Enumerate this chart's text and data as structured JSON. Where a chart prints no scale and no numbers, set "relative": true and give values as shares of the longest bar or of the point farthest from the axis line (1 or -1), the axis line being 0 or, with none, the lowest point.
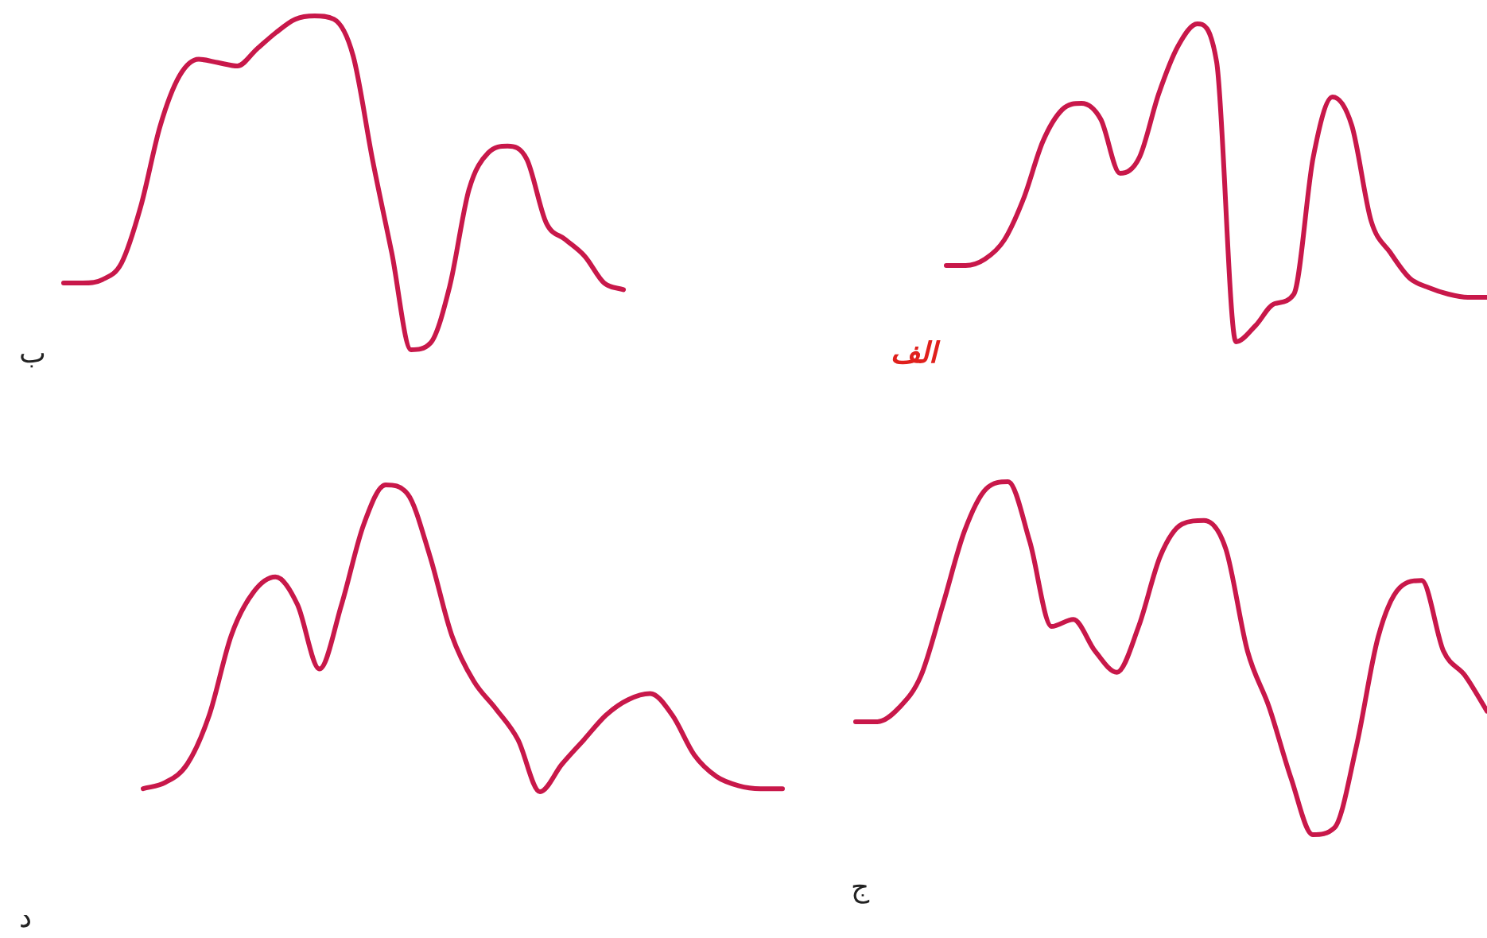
{
  "chart_data": [
    {
      "type": "line",
      "title": "الف",
      "relative": true,
      "legend": false,
      "grid": false,
      "marker": "none",
      "categories": [
        null,
        null,
        null,
        null,
        null,
        null,
        null,
        null,
        null,
        null,
        null,
        null,
        null,
        null,
        null,
        null,
        null,
        null,
        null,
        null,
        null,
        null,
        null,
        null,
        null,
        null,
        null,
        null,
        null
      ],
      "series": [
        {
          "color": "#c8184a",
          "values": [
            0.24,
            0.24,
            0.26,
            0.32,
            0.45,
            0.63,
            0.73,
            0.75,
            0.7,
            0.53,
            0.58,
            0.78,
            0.93,
            1,
            0.88,
            0,
            0.05,
            0.12,
            0.15,
            0.58,
            0.77,
            0.68,
            0.38,
            0.28,
            0.2,
            0.17,
            0.15,
            0.14,
            0.14
          ]
        }
      ]
    },
    {
      "type": "line",
      "title": "ب",
      "relative": true,
      "legend": false,
      "grid": false,
      "marker": "none",
      "categories": [
        null,
        null,
        null,
        null,
        null,
        null,
        null,
        null,
        null,
        null,
        null,
        null,
        null,
        null,
        null,
        null,
        null,
        null,
        null,
        null,
        null,
        null,
        null,
        null,
        null,
        null,
        null,
        null,
        null,
        null
      ],
      "series": [
        {
          "color": "#c8184a",
          "values": [
            0.2,
            0.2,
            0.21,
            0.26,
            0.43,
            0.67,
            0.82,
            0.87,
            0.86,
            0.85,
            0.9,
            0.95,
            0.99,
            1,
            0.99,
            0.88,
            0.57,
            0.29,
            0,
            0.02,
            0.19,
            0.48,
            0.59,
            0.61,
            0.57,
            0.38,
            0.33,
            0.28,
            0.2,
            0.18
          ]
        }
      ]
    },
    {
      "type": "line",
      "title": "ج",
      "relative": true,
      "legend": false,
      "grid": false,
      "marker": "none",
      "categories": [
        null,
        null,
        null,
        null,
        null,
        null,
        null,
        null,
        null,
        null,
        null,
        null,
        null,
        null,
        null,
        null,
        null,
        null,
        null,
        null,
        null,
        null,
        null,
        null,
        null,
        null,
        null,
        null,
        null,
        null
      ],
      "series": [
        {
          "color": "#c8184a",
          "values": [
            0.32,
            0.32,
            0.36,
            0.45,
            0.65,
            0.86,
            0.98,
            1,
            0.83,
            0.59,
            0.61,
            0.52,
            0.46,
            0.59,
            0.79,
            0.88,
            0.89,
            0.81,
            0.52,
            0.36,
            0.16,
            0,
            0.02,
            0.25,
            0.56,
            0.7,
            0.72,
            0.52,
            0.45,
            0.35
          ]
        }
      ]
    },
    {
      "type": "line",
      "title": "د",
      "relative": true,
      "legend": false,
      "grid": false,
      "marker": "none",
      "categories": [
        null,
        null,
        null,
        null,
        null,
        null,
        null,
        null,
        null,
        null,
        null,
        null,
        null,
        null,
        null,
        null,
        null,
        null,
        null,
        null,
        null,
        null,
        null,
        null,
        null,
        null,
        null,
        null,
        null,
        null
      ],
      "series": [
        {
          "color": "#c8184a",
          "values": [
            0.01,
            0.03,
            0.09,
            0.25,
            0.51,
            0.65,
            0.7,
            0.61,
            0.4,
            0.61,
            0.87,
            1,
            0.97,
            0.77,
            0.51,
            0.36,
            0.27,
            0.17,
            0,
            0.09,
            0.17,
            0.25,
            0.3,
            0.32,
            0.25,
            0.12,
            0.05,
            0.02,
            0.01,
            0.01
          ]
        }
      ]
    }
  ]
}
